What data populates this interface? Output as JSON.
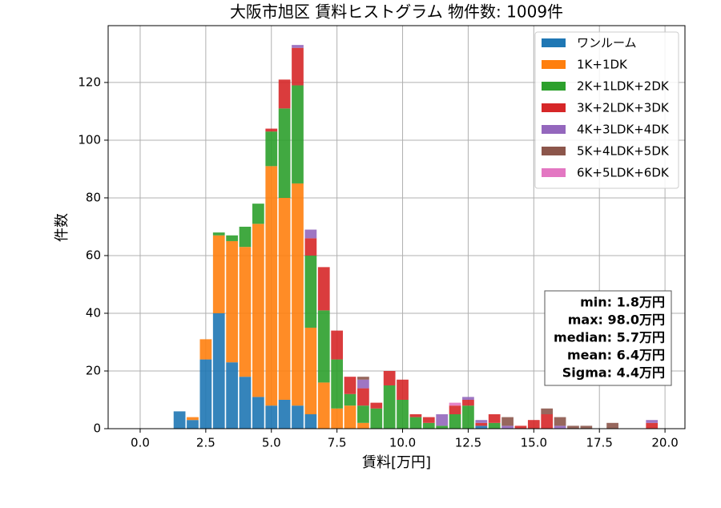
{
  "chart_data": {
    "type": "histogram",
    "title": "大阪市旭区 賃料ヒストグラム 物件数: 1009件",
    "x_label": "賃料[万円]",
    "y_label": "件数",
    "bins": [
      1.25,
      1.75,
      2.25,
      2.75,
      3.25,
      3.75,
      4.25,
      4.75,
      5.25,
      5.75,
      6.25,
      6.75,
      7.25,
      7.75,
      8.25,
      8.75,
      9.25,
      9.75,
      10.25,
      10.75,
      11.25,
      11.75,
      12.25,
      12.75,
      13.25,
      13.75,
      14.25,
      14.75,
      15.25,
      15.75,
      16.25,
      16.75,
      17.25,
      17.75,
      18.25,
      18.75,
      19.25,
      19.75
    ],
    "series": [
      {
        "name": "ワンルーム",
        "color": "#1f77b4",
        "values": [
          6,
          3,
          24,
          40,
          23,
          18,
          11,
          8,
          10,
          8,
          5,
          0,
          0,
          0,
          0,
          0,
          0,
          0,
          0,
          0,
          0,
          0,
          0,
          1,
          0,
          0,
          0,
          0,
          0,
          0,
          0,
          0,
          0,
          0,
          0,
          0,
          0
        ]
      },
      {
        "name": "1K+1DK",
        "color": "#ff7f0e",
        "values": [
          0,
          1,
          7,
          27,
          42,
          45,
          60,
          83,
          70,
          77,
          30,
          16,
          7,
          8,
          2,
          0,
          0,
          0,
          0,
          0,
          0,
          0,
          0,
          0,
          0,
          0,
          0,
          0,
          0,
          0,
          0,
          0,
          0,
          0,
          0,
          0,
          0
        ]
      },
      {
        "name": "2K+1LDK+2DK",
        "color": "#2ca02c",
        "values": [
          0,
          0,
          0,
          1,
          2,
          7,
          7,
          12,
          31,
          34,
          25,
          25,
          17,
          4,
          6,
          7,
          15,
          10,
          4,
          2,
          1,
          5,
          8,
          0,
          2,
          0,
          0,
          0,
          0,
          0,
          0,
          0,
          0,
          0,
          0,
          0,
          0
        ]
      },
      {
        "name": "3K+2LDK+3DK",
        "color": "#d62728",
        "values": [
          0,
          0,
          0,
          0,
          0,
          0,
          0,
          1,
          10,
          13,
          6,
          15,
          10,
          6,
          6,
          2,
          5,
          7,
          1,
          2,
          0,
          3,
          2,
          1,
          3,
          0,
          1,
          3,
          5,
          0,
          0,
          0,
          0,
          0,
          0,
          0,
          2
        ]
      },
      {
        "name": "4K+3LDK+4DK",
        "color": "#9467bd",
        "values": [
          0,
          0,
          0,
          0,
          0,
          0,
          0,
          0,
          0,
          1,
          3,
          0,
          0,
          0,
          3,
          0,
          0,
          0,
          0,
          0,
          4,
          0,
          1,
          1,
          0,
          1,
          0,
          0,
          0,
          1,
          0,
          0,
          0,
          0,
          0,
          0,
          1
        ]
      },
      {
        "name": "5K+4LDK+5DK",
        "color": "#8c564b",
        "values": [
          0,
          0,
          0,
          0,
          0,
          0,
          0,
          0,
          0,
          0,
          0,
          0,
          0,
          0,
          1,
          0,
          0,
          0,
          0,
          0,
          0,
          0,
          0,
          0,
          0,
          3,
          0,
          0,
          2,
          3,
          1,
          1,
          0,
          2,
          0,
          0,
          0
        ]
      },
      {
        "name": "6K+5LDK+6DK",
        "color": "#e377c2",
        "values": [
          0,
          0,
          0,
          0,
          0,
          0,
          0,
          0,
          0,
          0,
          0,
          0,
          0,
          0,
          0,
          0,
          0,
          0,
          0,
          0,
          0,
          1,
          0,
          0,
          0,
          0,
          0,
          0,
          0,
          0,
          0,
          0,
          0,
          0,
          0,
          0,
          0
        ]
      }
    ],
    "xlim": [
      -1.22,
      20.76
    ],
    "ylim": [
      0,
      139.7
    ],
    "xticks": [
      {
        "value": 0,
        "label": "0.0"
      },
      {
        "value": 2.5,
        "label": "2.5"
      },
      {
        "value": 5,
        "label": "5.0"
      },
      {
        "value": 7.5,
        "label": "7.5"
      },
      {
        "value": 10,
        "label": "10.0"
      },
      {
        "value": 12.5,
        "label": "12.5"
      },
      {
        "value": 15,
        "label": "15.0"
      },
      {
        "value": 17.5,
        "label": "17.5"
      },
      {
        "value": 20,
        "label": "20.0"
      }
    ],
    "yticks": [
      0,
      20,
      40,
      60,
      80,
      100,
      120
    ],
    "grid": true,
    "legend": "upper right",
    "annotations": [
      "min: 1.8万円",
      "max: 98.0万円",
      "median: 5.7万円",
      "mean: 6.4万円",
      "Sigma: 4.4万円"
    ]
  }
}
